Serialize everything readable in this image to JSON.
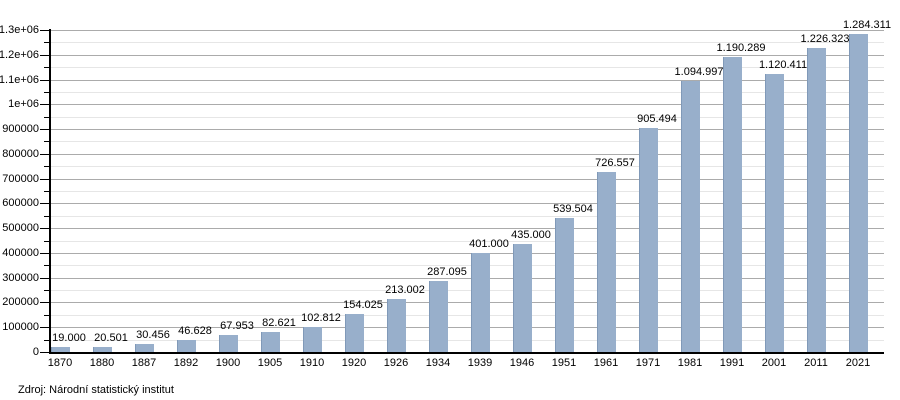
{
  "source_note": "Zdroj: Národní statistický institut",
  "chart_data": {
    "type": "bar",
    "categories": [
      "1870",
      "1880",
      "1887",
      "1892",
      "1900",
      "1905",
      "1910",
      "1920",
      "1926",
      "1934",
      "1939",
      "1946",
      "1951",
      "1961",
      "1971",
      "1981",
      "1991",
      "2001",
      "2011",
      "2021"
    ],
    "values": [
      19000,
      20501,
      30456,
      46628,
      67953,
      82621,
      102812,
      154025,
      213002,
      287095,
      401000,
      435000,
      539504,
      726557,
      905494,
      1094997,
      1190289,
      1120411,
      1226323,
      1284311
    ],
    "bar_labels": [
      "19.000",
      "20.501",
      "30.456",
      "46.628",
      "67.953",
      "82.621",
      "102.812",
      "154.025",
      "213.002",
      "287.095",
      "401.000",
      "435.000",
      "539.504",
      "726.557",
      "905.494",
      "1.094.997",
      "1.190.289",
      "1.120.411",
      "1.226.323",
      "1.284.311"
    ],
    "xlabel": "",
    "ylabel": "",
    "ylim": [
      0,
      1300000
    ],
    "y_major_step": 100000,
    "y_minor_step": 50000,
    "y_tick_labels": [
      "0",
      "100000",
      "200000",
      "300000",
      "400000",
      "500000",
      "600000",
      "700000",
      "800000",
      "900000",
      "1e+06",
      "1.1e+06",
      "1.2e+06",
      "1.3e+06"
    ],
    "grid": true,
    "legend": "none",
    "colors": {
      "bar_fill": "#98AFCB",
      "bar_edge": "#8099B8",
      "grid_major": "#ababab",
      "grid_minor": "#e6e6e6",
      "axis": "#000000",
      "text": "#000000"
    }
  }
}
